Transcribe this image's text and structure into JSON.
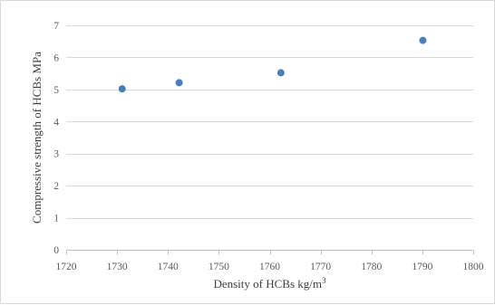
{
  "chart_data": {
    "type": "scatter",
    "title": "",
    "xlabel": "Density of HCBs kg/m",
    "xlabel_superscript": "3",
    "ylabel": "Compressive strength of HCBs MPa",
    "xlim": [
      1720,
      1800
    ],
    "ylim": [
      0,
      7
    ],
    "xticks": [
      1720,
      1730,
      1740,
      1750,
      1760,
      1770,
      1780,
      1790,
      1800
    ],
    "yticks": [
      0,
      1,
      2,
      3,
      4,
      5,
      6,
      7
    ],
    "grid": "horizontal",
    "legend": "none",
    "series": [
      {
        "color": "#4a7ebb",
        "points": [
          {
            "x": 1731,
            "y": 5.02
          },
          {
            "x": 1742.2,
            "y": 5.21
          },
          {
            "x": 1762.2,
            "y": 5.52
          },
          {
            "x": 1790.1,
            "y": 6.53
          }
        ]
      }
    ]
  }
}
